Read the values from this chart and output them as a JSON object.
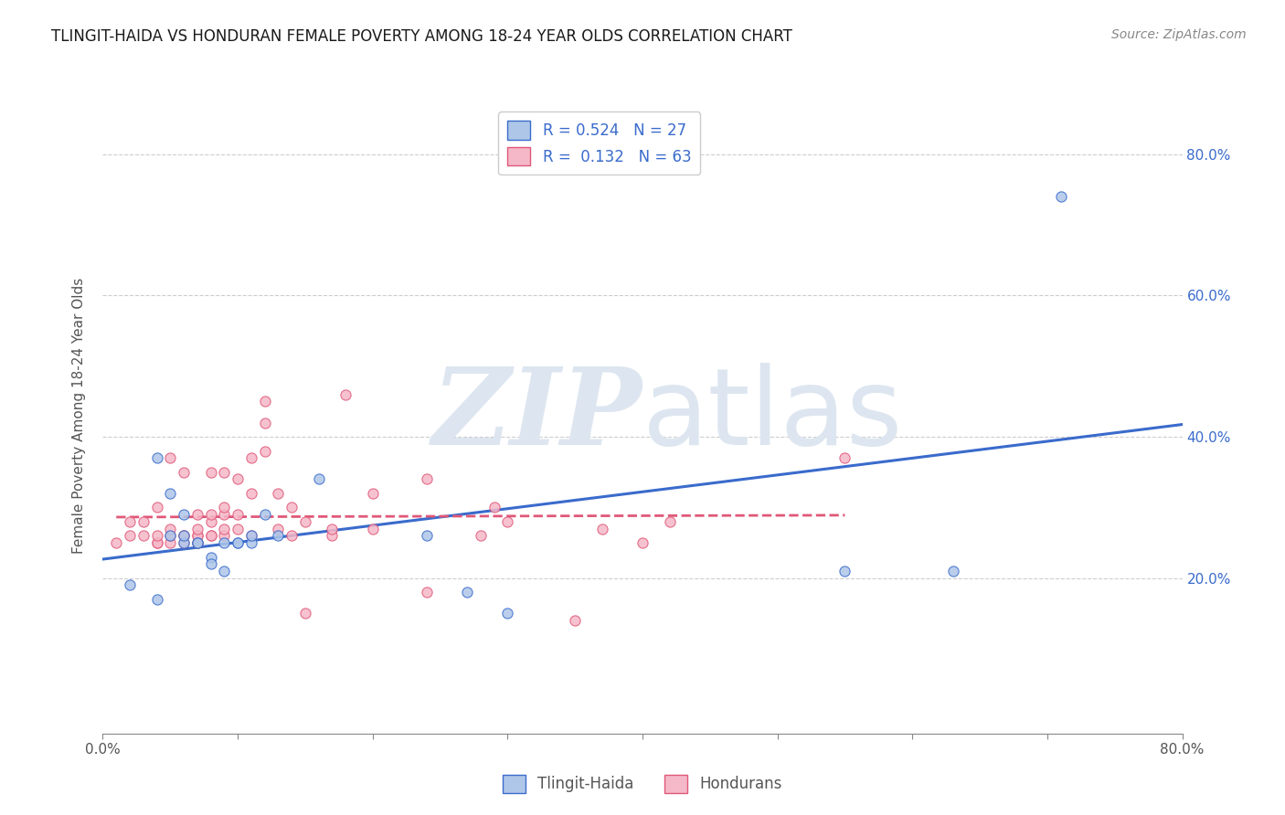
{
  "title": "TLINGIT-HAIDA VS HONDURAN FEMALE POVERTY AMONG 18-24 YEAR OLDS CORRELATION CHART",
  "source": "Source: ZipAtlas.com",
  "ylabel": "Female Poverty Among 18-24 Year Olds",
  "xlim": [
    0.0,
    0.8
  ],
  "ylim": [
    -0.02,
    0.88
  ],
  "xticks": [
    0.0,
    0.1,
    0.2,
    0.3,
    0.4,
    0.5,
    0.6,
    0.7,
    0.8
  ],
  "xticklabels": [
    "0.0%",
    "",
    "",
    "",
    "",
    "",
    "",
    "",
    "80.0%"
  ],
  "ytick_positions": [
    0.2,
    0.4,
    0.6,
    0.8
  ],
  "yticklabels": [
    "20.0%",
    "40.0%",
    "60.0%",
    "80.0%"
  ],
  "legend_R1": "R = 0.524",
  "legend_N1": "N = 27",
  "legend_R2": "R =  0.132",
  "legend_N2": "N = 63",
  "tlingit_color": "#aec6e8",
  "honduran_color": "#f5b8c8",
  "tlingit_line_color": "#3a6bcc",
  "honduran_line_color": "#e05878",
  "background_color": "#ffffff",
  "watermark_color": "#dde6f0",
  "grid_color": "#c8c8c8",
  "tlingit_x": [
    0.02,
    0.04,
    0.04,
    0.05,
    0.05,
    0.06,
    0.06,
    0.06,
    0.07,
    0.07,
    0.08,
    0.08,
    0.09,
    0.09,
    0.1,
    0.1,
    0.11,
    0.11,
    0.12,
    0.13,
    0.16,
    0.24,
    0.27,
    0.3,
    0.55,
    0.63,
    0.71
  ],
  "tlingit_y": [
    0.19,
    0.17,
    0.37,
    0.26,
    0.32,
    0.25,
    0.26,
    0.29,
    0.25,
    0.25,
    0.23,
    0.22,
    0.25,
    0.21,
    0.25,
    0.25,
    0.25,
    0.26,
    0.29,
    0.26,
    0.34,
    0.26,
    0.18,
    0.15,
    0.21,
    0.21,
    0.74
  ],
  "honduran_x": [
    0.01,
    0.02,
    0.02,
    0.03,
    0.03,
    0.04,
    0.04,
    0.04,
    0.04,
    0.05,
    0.05,
    0.05,
    0.05,
    0.06,
    0.06,
    0.06,
    0.06,
    0.07,
    0.07,
    0.07,
    0.07,
    0.07,
    0.07,
    0.08,
    0.08,
    0.08,
    0.08,
    0.08,
    0.09,
    0.09,
    0.09,
    0.09,
    0.09,
    0.1,
    0.1,
    0.1,
    0.11,
    0.11,
    0.11,
    0.12,
    0.12,
    0.12,
    0.13,
    0.13,
    0.14,
    0.14,
    0.15,
    0.15,
    0.17,
    0.17,
    0.18,
    0.2,
    0.2,
    0.24,
    0.24,
    0.28,
    0.29,
    0.3,
    0.35,
    0.37,
    0.4,
    0.42,
    0.55
  ],
  "honduran_y": [
    0.25,
    0.26,
    0.28,
    0.26,
    0.28,
    0.25,
    0.25,
    0.26,
    0.3,
    0.25,
    0.26,
    0.27,
    0.37,
    0.25,
    0.26,
    0.26,
    0.35,
    0.25,
    0.25,
    0.26,
    0.26,
    0.27,
    0.29,
    0.26,
    0.26,
    0.28,
    0.29,
    0.35,
    0.26,
    0.27,
    0.29,
    0.3,
    0.35,
    0.27,
    0.29,
    0.34,
    0.26,
    0.32,
    0.37,
    0.38,
    0.42,
    0.45,
    0.27,
    0.32,
    0.26,
    0.3,
    0.15,
    0.28,
    0.26,
    0.27,
    0.46,
    0.27,
    0.32,
    0.18,
    0.34,
    0.26,
    0.3,
    0.28,
    0.14,
    0.27,
    0.25,
    0.28,
    0.37
  ]
}
